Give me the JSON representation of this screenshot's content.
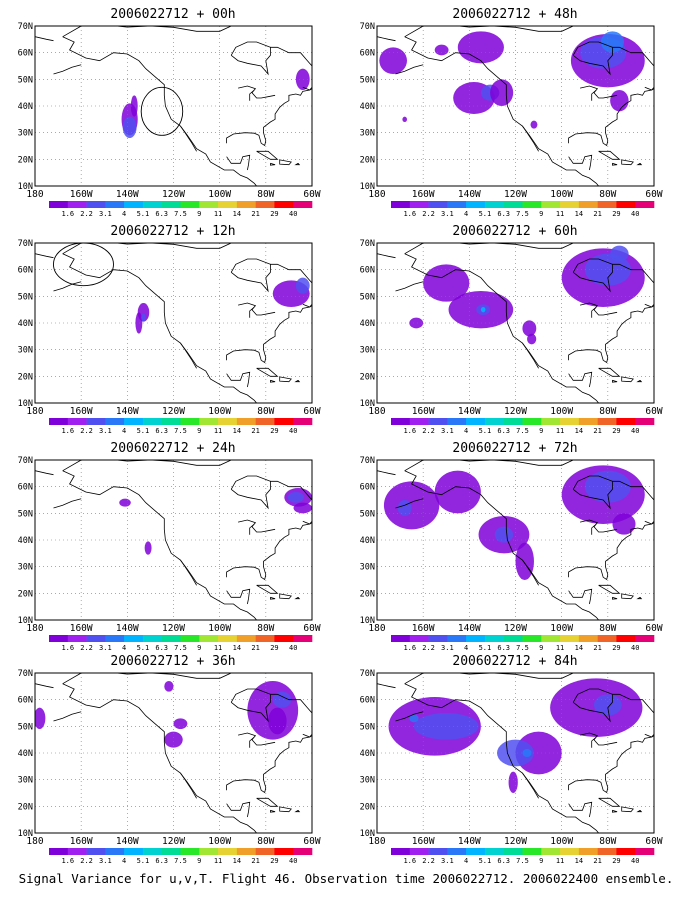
{
  "footer_caption": "Signal Variance for u,v,T. Flight 46. Observation time 2006022712. 2006022400 ensemble.",
  "map": {
    "lon_ticks": [
      "180",
      "160W",
      "140W",
      "120W",
      "100W",
      "80W",
      "60W"
    ],
    "lat_ticks": [
      "10N",
      "20N",
      "30N",
      "40N",
      "50N",
      "60N",
      "70N"
    ],
    "lon_range": [
      -180,
      -60
    ],
    "lat_range": [
      10,
      70
    ],
    "grid": "dotted"
  },
  "colorbar": {
    "labels": [
      "1.6",
      "2.2",
      "3.1",
      "4",
      "5.1",
      "6.3",
      "7.5",
      "9",
      "11",
      "14",
      "21",
      "29",
      "40"
    ],
    "colors": [
      "#7f00d8",
      "#a020f0",
      "#5050f0",
      "#2878f8",
      "#00b4ff",
      "#00d2d2",
      "#00dc96",
      "#28e628",
      "#a0e632",
      "#e6d232",
      "#f0a028",
      "#f06428",
      "#ff0000",
      "#e60078"
    ]
  },
  "panels": [
    {
      "title": "2006022712 + 00h",
      "lead": "00h"
    },
    {
      "title": "2006022712 + 48h",
      "lead": "48h"
    },
    {
      "title": "2006022712 + 12h",
      "lead": "12h"
    },
    {
      "title": "2006022712 + 60h",
      "lead": "60h"
    },
    {
      "title": "2006022712 + 24h",
      "lead": "24h"
    },
    {
      "title": "2006022712 + 72h",
      "lead": "72h"
    },
    {
      "title": "2006022712 + 36h",
      "lead": "36h"
    },
    {
      "title": "2006022712 + 84h",
      "lead": "84h"
    }
  ]
}
